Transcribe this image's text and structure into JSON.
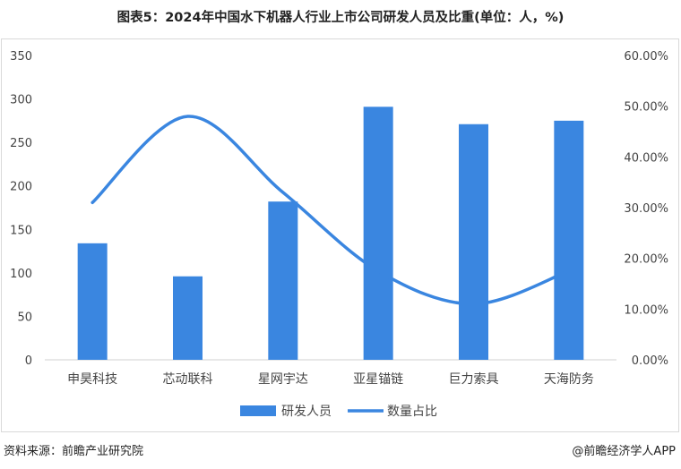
{
  "chart_data": {
    "type": "bar",
    "title": "图表5：2024年中国水下机器人行业上市公司研发人员及比重(单位：人，%)",
    "categories": [
      "申昊科技",
      "芯动联科",
      "星网宇达",
      "亚星锚链",
      "巨力索具",
      "天海防务"
    ],
    "series": [
      {
        "name": "研发人员",
        "type": "bar",
        "axis": "left",
        "color": "#3a86e0",
        "values": [
          134,
          96,
          182,
          291,
          271,
          275
        ]
      },
      {
        "name": "数量占比",
        "type": "line",
        "axis": "right",
        "smooth": true,
        "color": "#3a86e0",
        "values": [
          31.0,
          48.0,
          33.0,
          17.5,
          11.0,
          17.5
        ]
      }
    ],
    "y_left": {
      "min": 0,
      "max": 350,
      "ticks": [
        "0",
        "50",
        "100",
        "150",
        "200",
        "250",
        "300",
        "350"
      ]
    },
    "y_right": {
      "min": 0,
      "max": 60,
      "ticks": [
        "0.00%",
        "10.00%",
        "20.00%",
        "30.00%",
        "40.00%",
        "50.00%",
        "60.00%"
      ]
    },
    "grid": false,
    "legend": "bottom"
  },
  "source": "资料来源：前瞻产业研究院",
  "copyright": "@前瞻经济学人APP"
}
